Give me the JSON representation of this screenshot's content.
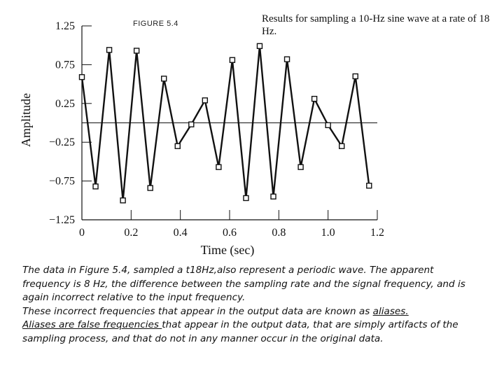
{
  "figure": {
    "label": "FIGURE 5.4",
    "caption": "Results for sampling a 10-Hz sine wave at a rate of 18 Hz."
  },
  "chart_data": {
    "type": "line",
    "title": "Results for sampling a 10-Hz sine wave at a rate of 18 Hz.",
    "xlabel": "Time (sec)",
    "ylabel": "Amplitude",
    "xlim": [
      0,
      1.2
    ],
    "ylim": [
      -1.25,
      1.25
    ],
    "xticks": [
      "0",
      "0.2",
      "0.4",
      "0.6",
      "0.8",
      "1.0",
      "1.2"
    ],
    "yticks": [
      "1.25",
      "0.75",
      "0.25",
      "−0.25",
      "−0.75",
      "−1.25"
    ],
    "markers": "open-square",
    "zero_line": true,
    "grid": false,
    "series": [
      {
        "x": [
          0.0,
          0.0556,
          0.1111,
          0.1667,
          0.2222,
          0.2778,
          0.3333,
          0.3889,
          0.4444,
          0.5,
          0.5556,
          0.6111,
          0.6667,
          0.7222,
          0.7778,
          0.8333,
          0.8889,
          0.9444,
          1.0,
          1.0556,
          1.1111,
          1.1667
        ],
        "y": [
          0.59,
          -0.82,
          0.94,
          -1.0,
          0.93,
          -0.84,
          0.57,
          -0.3,
          -0.02,
          0.29,
          -0.57,
          0.81,
          -0.97,
          0.99,
          -0.95,
          0.82,
          -0.57,
          0.31,
          -0.03,
          -0.3,
          0.6,
          -0.81
        ]
      }
    ]
  },
  "text": {
    "line1": "The data in Figure 5.4, sampled a t18Hz,also represent a periodic wave. The apparent frequency is 8 Hz, the difference between the sampling rate and the signal frequency, and is again incorrect relative to the input frequency.",
    "line2_pre": "These incorrect frequencies that appear in the output data are known as ",
    "line2_link": "aliases.",
    "line3_link": "Aliases are false frequencies ",
    "line3_post": "that appear in the output data, that are simply artifacts of the sampling process, and that do not in any manner occur in the original data."
  }
}
